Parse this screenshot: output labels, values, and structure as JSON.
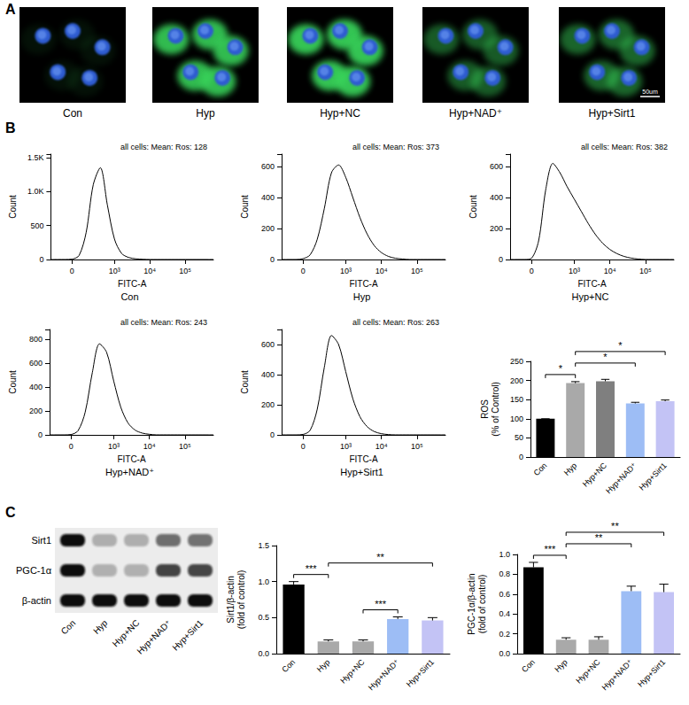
{
  "panel_labels": [
    "A",
    "B",
    "C"
  ],
  "images": {
    "labels": [
      "Con",
      "Hyp",
      "Hyp+NC",
      "Hyp+NAD⁺",
      "Hyp+Sirt1"
    ],
    "scale_bar": "50um"
  },
  "blot": {
    "rows": [
      "Sirt1",
      "PGC-1α",
      "β-actin"
    ],
    "lanes": [
      "Con",
      "Hyp",
      "Hyp+NC",
      "Hyp+NAD⁺",
      "Hyp+Sirt1"
    ]
  },
  "chart_data": [
    {
      "type": "line",
      "title": "Con",
      "annotation": "all cells: Mean: Ros: 128",
      "xlabel": "FITC-A",
      "ylabel": "Count",
      "categories": [
        null,
        null,
        null,
        "0",
        null,
        null,
        null,
        null,
        null,
        "10³",
        null,
        null,
        null,
        null,
        "10⁴",
        null,
        null,
        null,
        null,
        "10⁵",
        null,
        null,
        null,
        null
      ],
      "values": [
        0,
        0,
        0,
        5,
        60,
        400,
        1100,
        1350,
        800,
        300,
        90,
        30,
        10,
        3,
        0,
        0,
        0,
        0,
        0,
        0,
        0,
        0,
        0,
        0
      ],
      "color": "#000000",
      "ylim": [
        0,
        1550
      ],
      "yticks": [
        0,
        500,
        {
          "value": 1000,
          "label": "1.0K"
        },
        {
          "value": 1500,
          "label": "1.5K"
        }
      ],
      "grid": false
    },
    {
      "type": "line",
      "title": "Hyp",
      "annotation": "all cells: Mean: Ros: 373",
      "xlabel": "FITC-A",
      "ylabel": "Count",
      "categories": [
        null,
        null,
        null,
        "0",
        null,
        null,
        null,
        null,
        null,
        "10³",
        null,
        null,
        null,
        null,
        "10⁴",
        null,
        null,
        null,
        null,
        "10⁵",
        null,
        null,
        null,
        null
      ],
      "values": [
        0,
        0,
        0,
        5,
        30,
        130,
        330,
        560,
        610,
        530,
        400,
        270,
        165,
        90,
        45,
        20,
        8,
        3,
        0,
        0,
        0,
        0,
        0,
        0
      ],
      "color": "#000000",
      "ylim": [
        0,
        680
      ],
      "yticks": [
        0,
        200,
        400,
        600
      ],
      "grid": false
    },
    {
      "type": "line",
      "title": "Hyp+NC",
      "annotation": "all cells: Mean: Ros: 382",
      "xlabel": "FITC-A",
      "ylabel": "Count",
      "categories": [
        null,
        null,
        null,
        "0",
        null,
        null,
        null,
        null,
        null,
        "10³",
        null,
        null,
        null,
        null,
        "10⁴",
        null,
        null,
        null,
        null,
        "10⁵",
        null,
        null,
        null,
        null
      ],
      "values": [
        0,
        0,
        0,
        8,
        120,
        450,
        620,
        560,
        470,
        390,
        310,
        230,
        160,
        105,
        65,
        38,
        20,
        9,
        3,
        0,
        0,
        0,
        0,
        0
      ],
      "color": "#000000",
      "ylim": [
        0,
        680
      ],
      "yticks": [
        0,
        200,
        400,
        600
      ],
      "grid": false
    },
    {
      "type": "line",
      "title": "Hyp+NAD⁺",
      "annotation": "all cells: Mean: Ros: 243",
      "xlabel": "FITC-A",
      "ylabel": "Count",
      "categories": [
        null,
        null,
        null,
        "0",
        null,
        null,
        null,
        null,
        null,
        "10³",
        null,
        null,
        null,
        null,
        "10⁴",
        null,
        null,
        null,
        null,
        "10⁵",
        null,
        null,
        null,
        null
      ],
      "values": [
        0,
        0,
        0,
        3,
        35,
        190,
        520,
        760,
        690,
        450,
        230,
        100,
        40,
        15,
        5,
        0,
        0,
        0,
        0,
        0,
        0,
        0,
        0,
        0
      ],
      "color": "#000000",
      "ylim": [
        0,
        880
      ],
      "yticks": [
        0,
        200,
        400,
        600,
        800
      ],
      "grid": false
    },
    {
      "type": "line",
      "title": "Hyp+Sirt1",
      "annotation": "all cells: Mean: Ros: 263",
      "xlabel": "FITC-A",
      "ylabel": "Count",
      "categories": [
        null,
        null,
        null,
        "0",
        null,
        null,
        null,
        null,
        null,
        "10³",
        null,
        null,
        null,
        null,
        "10⁴",
        null,
        null,
        null,
        null,
        "10⁵",
        null,
        null,
        null,
        null
      ],
      "values": [
        0,
        0,
        0,
        3,
        30,
        170,
        450,
        660,
        600,
        420,
        240,
        120,
        55,
        22,
        8,
        2,
        0,
        0,
        0,
        0,
        0,
        0,
        0,
        0
      ],
      "color": "#000000",
      "ylim": [
        0,
        700
      ],
      "yticks": [
        0,
        200,
        400,
        600
      ],
      "grid": false
    },
    {
      "type": "bar",
      "ylabel": "ROS\n(% of Control)",
      "categories": [
        "Con",
        "Hyp",
        "Hyp+NC",
        "Hyp+NAD⁺",
        "Hyp+Sirt1"
      ],
      "values": [
        100,
        193,
        198,
        140,
        146
      ],
      "errors": [
        0,
        4,
        5,
        3,
        3
      ],
      "colors": [
        "#000000",
        "#a9a9a9",
        "#7f7f7f",
        "#9dbdf5",
        "#c3c3f5"
      ],
      "ylim": [
        0,
        250
      ],
      "yticks": [
        0,
        50,
        100,
        150,
        200,
        250
      ],
      "grid": false,
      "annotations": [
        {
          "text": "*",
          "from": "Con",
          "to": "Hyp"
        },
        {
          "text": "*",
          "from": "Hyp",
          "to": "Hyp+NAD⁺"
        },
        {
          "text": "*",
          "from": "Hyp",
          "to": "Hyp+Sirt1"
        }
      ]
    },
    {
      "type": "bar",
      "ylabel": "Sirt1/β-actin\n(fold of control)",
      "categories": [
        "Con",
        "Hyp",
        "Hyp+NC",
        "Hyp+NAD⁺",
        "Hyp+Sirt1"
      ],
      "values": [
        0.96,
        0.17,
        0.17,
        0.48,
        0.46
      ],
      "errors": [
        0.04,
        0.02,
        0.02,
        0.03,
        0.04
      ],
      "colors": [
        "#000000",
        "#a9a9a9",
        "#a9a9a9",
        "#9dbdf5",
        "#c3c3f5"
      ],
      "ylim": [
        0,
        1.5
      ],
      "yticks": [
        {
          "value": 0,
          "label": "0.0"
        },
        0.5,
        {
          "value": 1,
          "label": "1.0"
        },
        1.5
      ],
      "grid": false,
      "annotations": [
        {
          "text": "***",
          "from": "Con",
          "to": "Hyp"
        },
        {
          "text": "***",
          "from": "Hyp+NC",
          "to": "Hyp+NAD⁺"
        },
        {
          "text": "**",
          "from": "Hyp",
          "to": "Hyp+Sirt1"
        }
      ]
    },
    {
      "type": "bar",
      "ylabel": "PGC-1α/β-actin\n(fold of control)",
      "categories": [
        "Con",
        "Hyp",
        "Hyp+NC",
        "Hyp+NAD⁺",
        "Hyp+Sirt1"
      ],
      "values": [
        0.87,
        0.14,
        0.14,
        0.63,
        0.62
      ],
      "errors": [
        0.05,
        0.02,
        0.03,
        0.05,
        0.08
      ],
      "colors": [
        "#000000",
        "#a9a9a9",
        "#a9a9a9",
        "#9dbdf5",
        "#c3c3f5"
      ],
      "ylim": [
        0,
        1.0
      ],
      "yticks": [
        {
          "value": 0,
          "label": "0.0"
        },
        0.2,
        0.4,
        0.6,
        0.8,
        {
          "value": 1,
          "label": "1.0"
        }
      ],
      "grid": false,
      "annotations": [
        {
          "text": "***",
          "from": "Con",
          "to": "Hyp"
        },
        {
          "text": "**",
          "from": "Hyp",
          "to": "Hyp+NAD⁺"
        },
        {
          "text": "**",
          "from": "Hyp",
          "to": "Hyp+Sirt1"
        }
      ]
    }
  ]
}
